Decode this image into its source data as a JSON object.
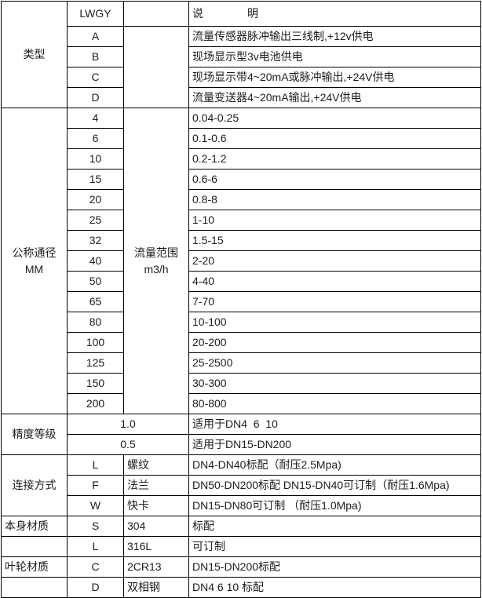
{
  "table": {
    "header": {
      "model_code": "LWGY",
      "description_title": "说　　　　明"
    },
    "type_section": {
      "label": "类型",
      "rows": [
        {
          "code": "A",
          "desc": "流量传感器脉冲输出三线制,+12v供电"
        },
        {
          "code": "B",
          "desc": "现场显示型3v电池供电"
        },
        {
          "code": "C",
          "desc": "现场显示带4~20mA或脉冲输出,+24V供电"
        },
        {
          "code": "D",
          "desc": "流量变送器4~20mA输出,+24V供电"
        }
      ]
    },
    "diameter_section": {
      "label": "公称通径\nMM",
      "range_label": "流量范围\nm3/h",
      "rows": [
        {
          "size": "4",
          "range": "0.04-0.25"
        },
        {
          "size": "6",
          "range": "0.1-0.6"
        },
        {
          "size": "10",
          "range": "0.2-1.2"
        },
        {
          "size": "15",
          "range": "0.6-6"
        },
        {
          "size": "20",
          "range": "0.8-8"
        },
        {
          "size": "25",
          "range": "1-10"
        },
        {
          "size": "32",
          "range": "1.5-15"
        },
        {
          "size": "40",
          "range": "2-20"
        },
        {
          "size": "50",
          "range": "4-40"
        },
        {
          "size": "65",
          "range": "7-70"
        },
        {
          "size": "80",
          "range": "10-100"
        },
        {
          "size": "100",
          "range": "20-200"
        },
        {
          "size": "125",
          "range": "25-2500"
        },
        {
          "size": "150",
          "range": "30-300"
        },
        {
          "size": "200",
          "range": "80-800"
        }
      ]
    },
    "accuracy_section": {
      "label": "精度等级",
      "rows": [
        {
          "value": "1.0",
          "desc": "适用于DN4  6  10"
        },
        {
          "value": "0.5",
          "desc": "适用于DN15-DN200"
        }
      ]
    },
    "connection_section": {
      "label": "连接方式",
      "rows": [
        {
          "code": "L",
          "name": "螺纹",
          "desc": "DN4-DN40标配（耐压2.5Mpa)"
        },
        {
          "code": "F",
          "name": "法兰",
          "desc": "DN50-DN200标配 DN15-DN40可订制（耐压1.6Mpa)"
        },
        {
          "code": "W",
          "name": "快卡",
          "desc": "DN15-DN80可订制 （耐压1.0Mpa)"
        }
      ]
    },
    "body_material_section": {
      "label": "本身材质",
      "rows": [
        {
          "code": "S",
          "name": "304",
          "desc": "标配"
        },
        {
          "code": "L",
          "name": "316L",
          "desc": "可订制"
        }
      ]
    },
    "impeller_material_section": {
      "label": "叶轮材质",
      "rows": [
        {
          "code": "C",
          "name": "2CR13",
          "desc": "DN15-DN200标配"
        },
        {
          "code": "D",
          "name": "双相钢",
          "desc": "DN4 6 10 标配"
        }
      ]
    }
  }
}
